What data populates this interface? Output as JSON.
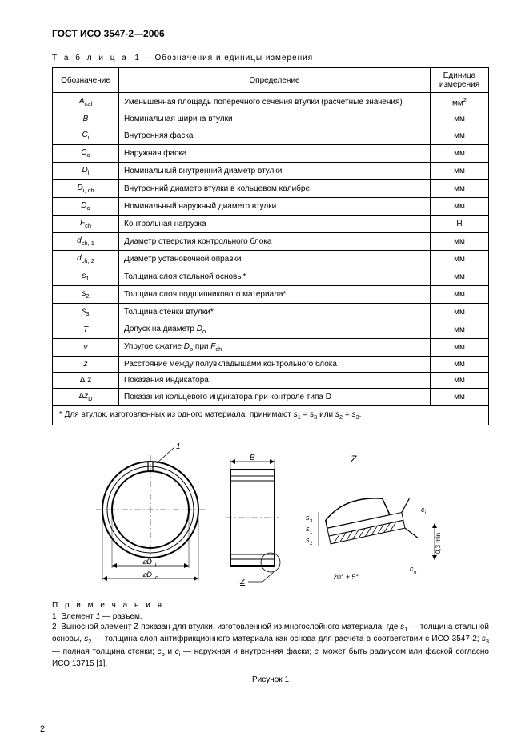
{
  "header": "ГОСТ ИСО 3547-2—2006",
  "table_caption_prefix": "Т а б л и ц а",
  "table_caption_num": "1",
  "table_caption_rest": "— Обозначения и единицы измерения",
  "columns": {
    "symbol": "Обозначение",
    "definition": "Определение",
    "unit": "Единица измерения"
  },
  "rows": [
    {
      "sym_html": "<i>A</i><sub>cal</sub>",
      "def": "Уменьшенная площадь поперечного сечения втулки (расчетные значения)",
      "unit_html": "мм<sup>2</sup>"
    },
    {
      "sym_html": "<i>B</i>",
      "def": "Номинальная ширина втулки",
      "unit_html": "мм"
    },
    {
      "sym_html": "<i>C</i><sub>i</sub>",
      "def": "Внутренняя фаска",
      "unit_html": "мм"
    },
    {
      "sym_html": "<i>C</i><sub>o</sub>",
      "def": "Наружная фаска",
      "unit_html": "мм"
    },
    {
      "sym_html": "<i>D</i><sub>i</sub>",
      "def": "Номинальный внутренний диаметр втулки",
      "unit_html": "мм"
    },
    {
      "sym_html": "<i>D</i><sub>i, ch</sub>",
      "def": "Внутренний диаметр втулки в кольцевом калибре",
      "unit_html": "мм"
    },
    {
      "sym_html": "<i>D</i><sub>o</sub>",
      "def": "Номинальный наружный диаметр втулки",
      "unit_html": "мм"
    },
    {
      "sym_html": "<i>F</i><sub>ch</sub>",
      "def": "Контрольная нагрузка",
      "unit_html": "Н"
    },
    {
      "sym_html": "<i>d</i><sub>ch, 1</sub>",
      "def": "Диаметр отверстия контрольного блока",
      "unit_html": "мм"
    },
    {
      "sym_html": "<i>d</i><sub>ch, 2</sub>",
      "def": "Диаметр установочной оправки",
      "unit_html": "мм"
    },
    {
      "sym_html": "<i>s</i><sub>1</sub>",
      "def": "Толщина слоя стальной основы*",
      "unit_html": "мм"
    },
    {
      "sym_html": "<i>s</i><sub>2</sub>",
      "def": "Толщина слоя подшипникового материала*",
      "unit_html": "мм"
    },
    {
      "sym_html": "<i>s</i><sub>3</sub>",
      "def": "Толщина стенки втулки*",
      "unit_html": "мм"
    },
    {
      "sym_html": "<i>T</i>",
      "def_html": "Допуск на диаметр <i>D</i><sub>о</sub>",
      "unit_html": "мм"
    },
    {
      "sym_html": "<i>v</i>",
      "def_html": "Упругое сжатие <i>D</i><sub>о</sub> при <i>F</i><sub>ch</sub>",
      "unit_html": "мм"
    },
    {
      "sym_html": "<i>z</i>",
      "def": "Расстояние между полувкладышами контрольного блока",
      "unit_html": "мм"
    },
    {
      "sym_html": "Δ&nbsp;z",
      "def": "Показания индикатора",
      "unit_html": "мм"
    },
    {
      "sym_html": "Δ<i>z</i><sub>D</sub>",
      "def": "Показания кольцевого индикатора при контроле типа D",
      "unit_html": "мм"
    }
  ],
  "footnote_html": "* Для втулок, изготовленных из одного материала, принимают <i>s</i><sub>1</sub> = <i>s</i><sub>3</sub> или <i>s</i><sub>2</sub> = <i>s</i><sub>3</sub>.",
  "notes_header": "П р и м е ч а н и я",
  "note1_html": "1&nbsp;&nbsp;Элемент <i>1</i> — разъем.",
  "note2_html": "2&nbsp;&nbsp;Выносной элемент Z показан для втулки, изготовленной из многослойного материала, где <i>s</i><sub>1</sub> — толщина стальной основы, <i>s</i><sub>2</sub> — толщина слоя антифрикционного материала как основа для расчета в соответствии с ИСО 3547-2; <i>s</i><sub>3</sub> — полная толщина стенки; <i>c</i><sub>о</sub> и <i>c</i><sub>i</sub> — наружная и внутренняя фаски; <i>c</i><sub>i</sub> может быть радиусом или фаской согласно ИСО 13715 [1].",
  "figure_caption": "Рисунок 1",
  "page_number": "2",
  "figure": {
    "front_view": {
      "label1": "1",
      "dD_i": "⌀D_i",
      "dD_o": "⌀D_o"
    },
    "side_view": {
      "B": "B",
      "Z": "Z"
    },
    "detail": {
      "Z": "Z",
      "s1": "s₁",
      "s2": "s₂",
      "s3": "s₃",
      "ci": "c_i",
      "co": "c_o",
      "angle": "20° ± 5°",
      "rad": "0,3 min"
    },
    "stroke": "#000000",
    "fill": "#ffffff",
    "hatch": "#000000"
  }
}
